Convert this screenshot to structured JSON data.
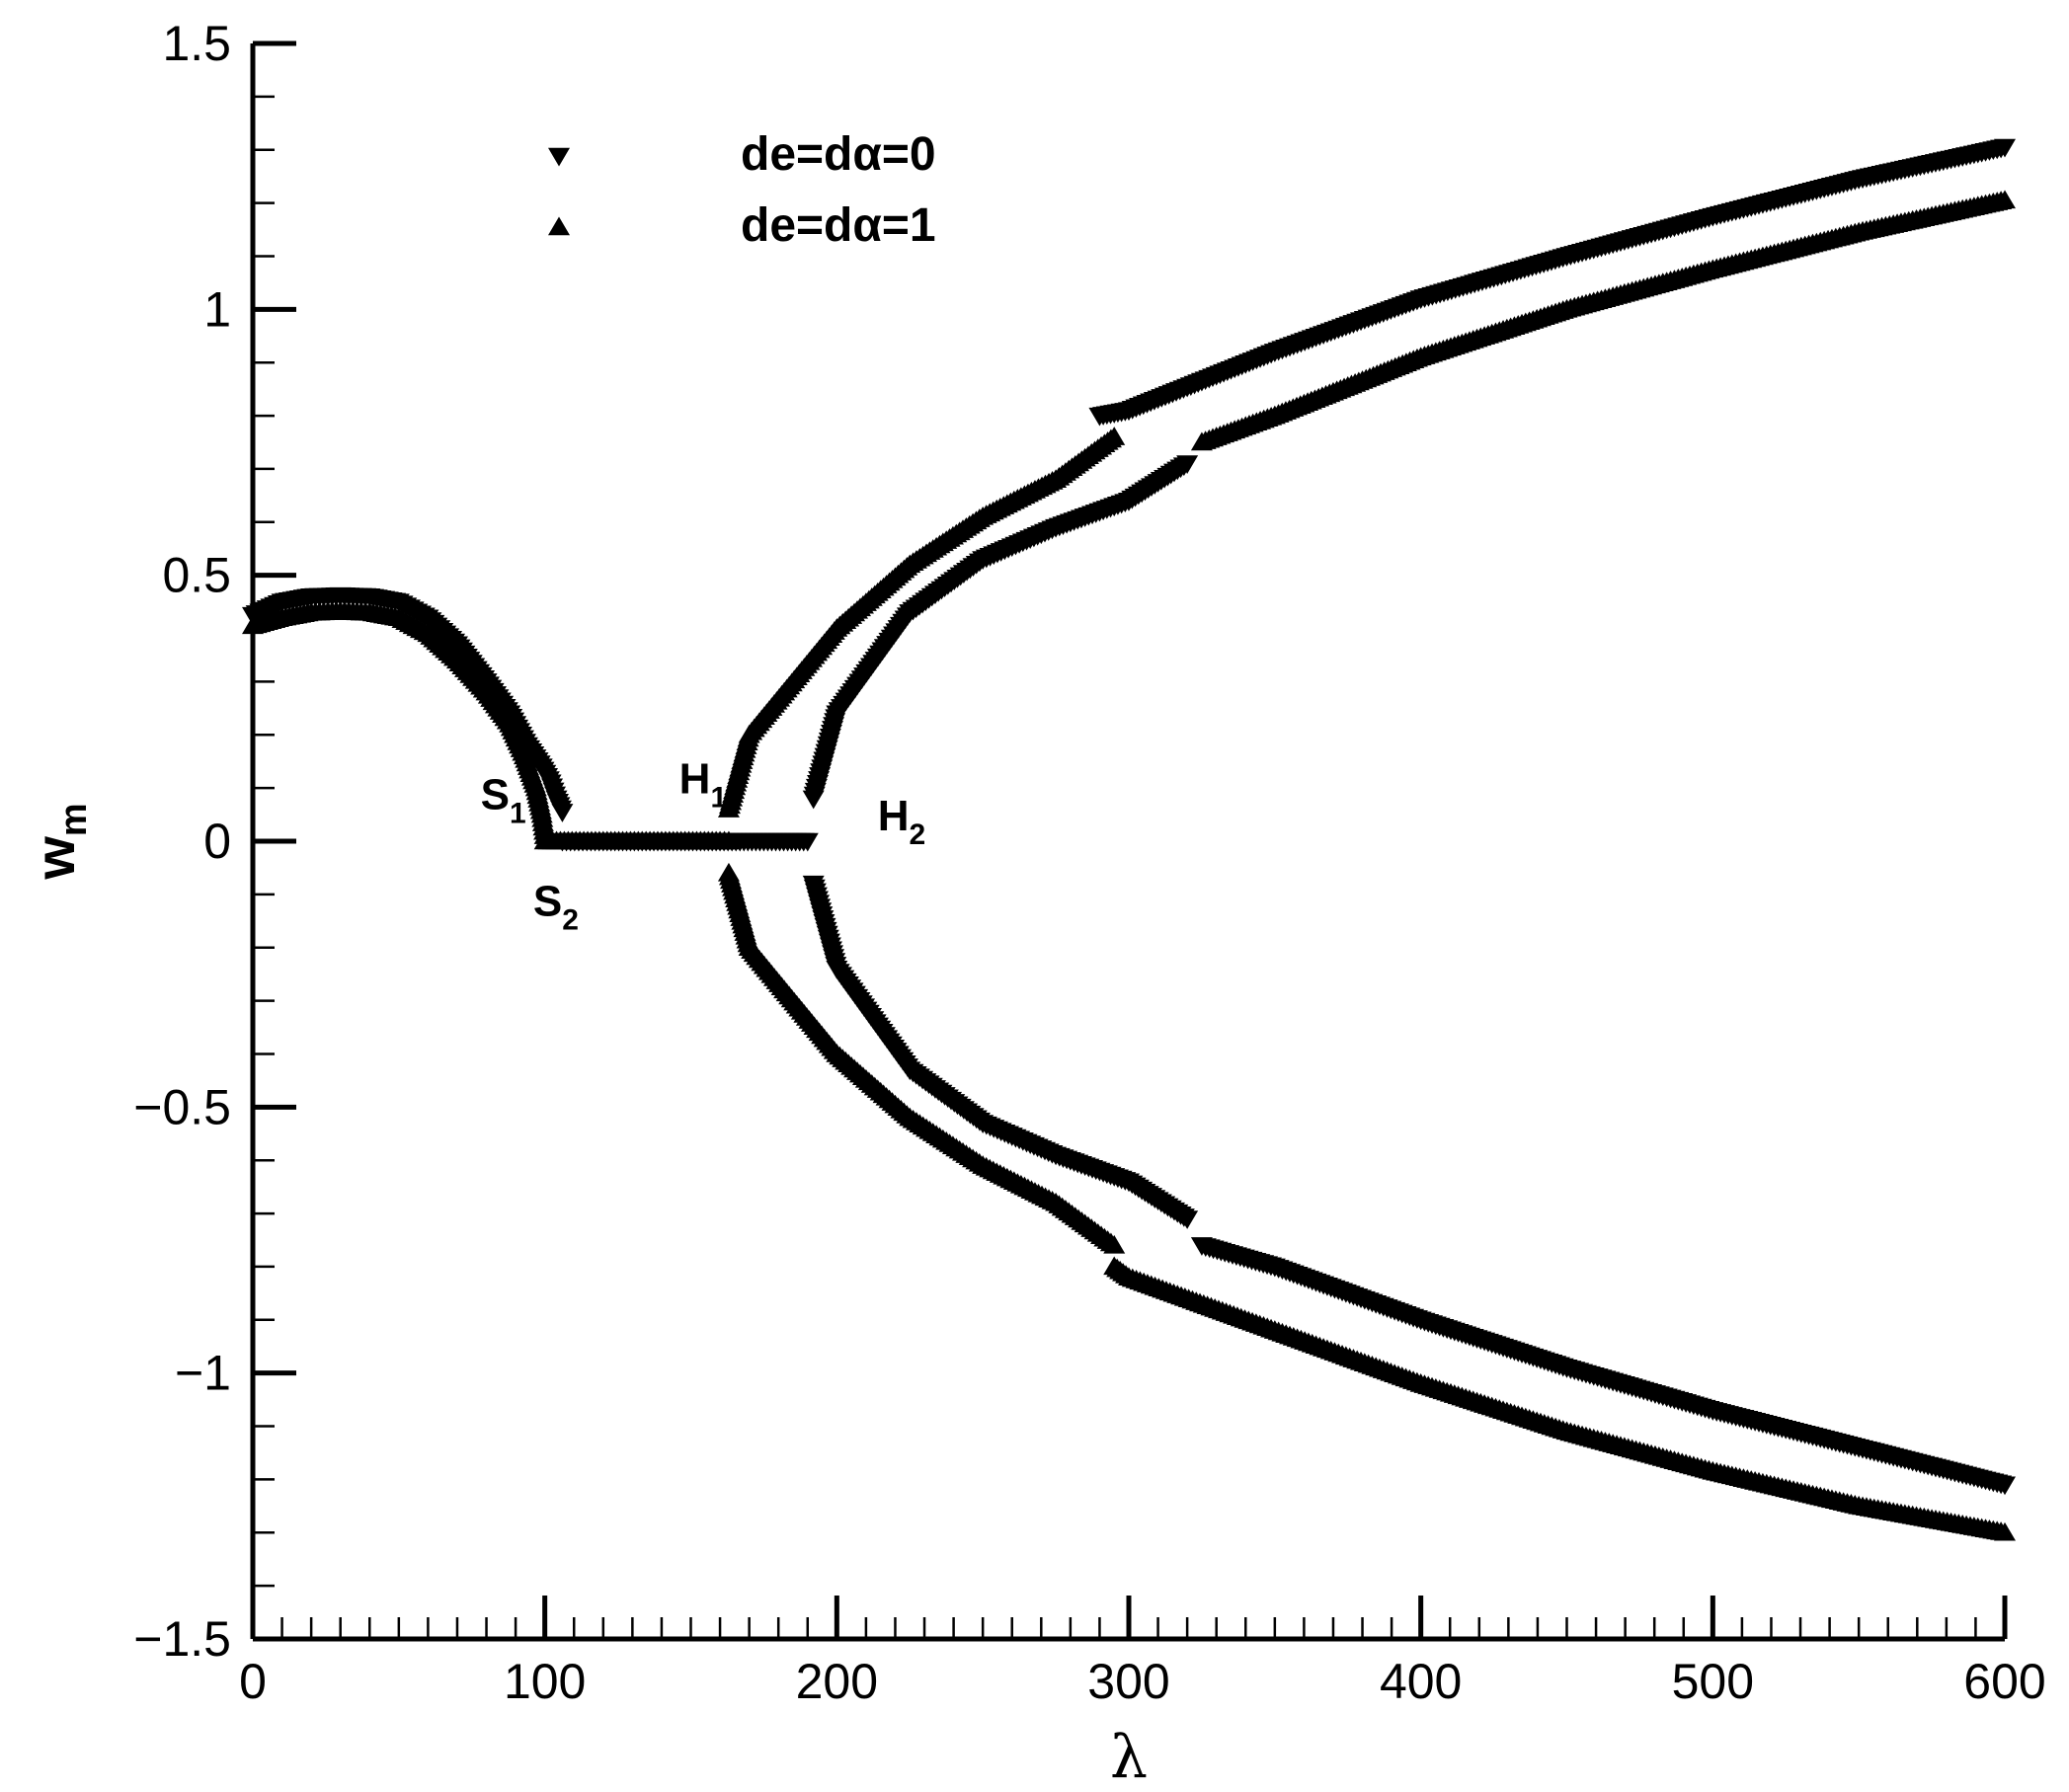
{
  "chart_data": {
    "type": "scatter",
    "title": "",
    "xlabel": "λ",
    "ylabel_main": "w",
    "ylabel_sub": "m",
    "xlim": [
      0,
      600
    ],
    "ylim": [
      -1.5,
      1.5
    ],
    "xticks": [
      0,
      100,
      200,
      300,
      400,
      500,
      600
    ],
    "xtick_labels": [
      "0",
      "100",
      "200",
      "300",
      "400",
      "500",
      "600"
    ],
    "yticks": [
      -1.5,
      -1,
      -0.5,
      0,
      0.5,
      1,
      1.5
    ],
    "ytick_labels": [
      "−1.5",
      "−1",
      "−0.5",
      "0",
      "0.5",
      "1",
      "1.5"
    ],
    "grid": false,
    "legend_position": "top-left",
    "series": [
      {
        "name": "de=dα=0",
        "marker": "triangle-down",
        "color": "#000000",
        "branches": [
          {
            "x": [
              0,
              10,
              20,
              30,
              40,
              50,
              60,
              70,
              80,
              88,
              94,
              99,
              102,
              104,
              106
            ],
            "y": [
              0.425,
              0.45,
              0.46,
              0.462,
              0.46,
              0.45,
              0.42,
              0.37,
              0.3,
              0.24,
              0.18,
              0.14,
              0.11,
              0.08,
              0.055
            ]
          },
          {
            "x": [
              106,
              120,
              140,
              160,
              175,
              190
            ],
            "y": [
              0,
              0,
              0,
              0,
              0,
              0
            ]
          },
          {
            "x": [
              192,
              200,
              225,
              250,
              275,
              300,
              320
            ],
            "y": [
              0.08,
              0.24,
              0.43,
              0.53,
              0.59,
              0.64,
              0.71
            ]
          },
          {
            "x": [
              192,
              200,
              225,
              250,
              275,
              300,
              320
            ],
            "y": [
              -0.08,
              -0.24,
              -0.43,
              -0.53,
              -0.59,
              -0.64,
              -0.71
            ]
          },
          {
            "x": [
              290,
              300,
              350,
              400,
              450,
              500,
              550,
              600
            ],
            "y": [
              0.8,
              0.81,
              0.92,
              1.02,
              1.1,
              1.175,
              1.245,
              1.305
            ]
          },
          {
            "x": [
              325,
              350,
              400,
              450,
              500,
              550,
              600
            ],
            "y": [
              -0.76,
              -0.8,
              -0.9,
              -0.99,
              -1.07,
              -1.14,
              -1.21
            ]
          }
        ]
      },
      {
        "name": "de=dα=1",
        "marker": "triangle-up",
        "color": "#000000",
        "branches": [
          {
            "x": [
              0,
              10,
              20,
              30,
              40,
              50,
              60,
              70,
              80,
              88,
              93,
              97,
              99,
              100
            ],
            "y": [
              0.405,
              0.42,
              0.43,
              0.432,
              0.43,
              0.42,
              0.39,
              0.34,
              0.28,
              0.22,
              0.16,
              0.1,
              0.05,
              0.01
            ]
          },
          {
            "x": [
              100,
              120,
              140,
              160,
              163
            ],
            "y": [
              0,
              0,
              0,
              0,
              0
            ]
          },
          {
            "x": [
              163,
              170,
              200,
              225,
              250,
              275,
              295
            ],
            "y": [
              0.06,
              0.2,
              0.4,
              0.52,
              0.61,
              0.68,
              0.76
            ]
          },
          {
            "x": [
              163,
              170,
              200,
              225,
              250,
              275,
              295
            ],
            "y": [
              -0.06,
              -0.2,
              -0.4,
              -0.52,
              -0.61,
              -0.68,
              -0.76
            ]
          },
          {
            "x": [
              325,
              350,
              400,
              450,
              500,
              550,
              600
            ],
            "y": [
              0.75,
              0.8,
              0.91,
              1.0,
              1.075,
              1.145,
              1.205
            ]
          },
          {
            "x": [
              295,
              300,
              350,
              400,
              450,
              500,
              550,
              600
            ],
            "y": [
              -0.8,
              -0.82,
              -0.92,
              -1.02,
              -1.11,
              -1.185,
              -1.25,
              -1.3
            ]
          }
        ]
      }
    ],
    "annotations": [
      {
        "text": "S",
        "sub": "1",
        "x": 78,
        "y": 0.06
      },
      {
        "text": "S",
        "sub": "2",
        "x": 96,
        "y": -0.14
      },
      {
        "text": "H",
        "sub": "1",
        "x": 146,
        "y": 0.09
      },
      {
        "text": "H",
        "sub": "2",
        "x": 214,
        "y": 0.02
      }
    ]
  }
}
